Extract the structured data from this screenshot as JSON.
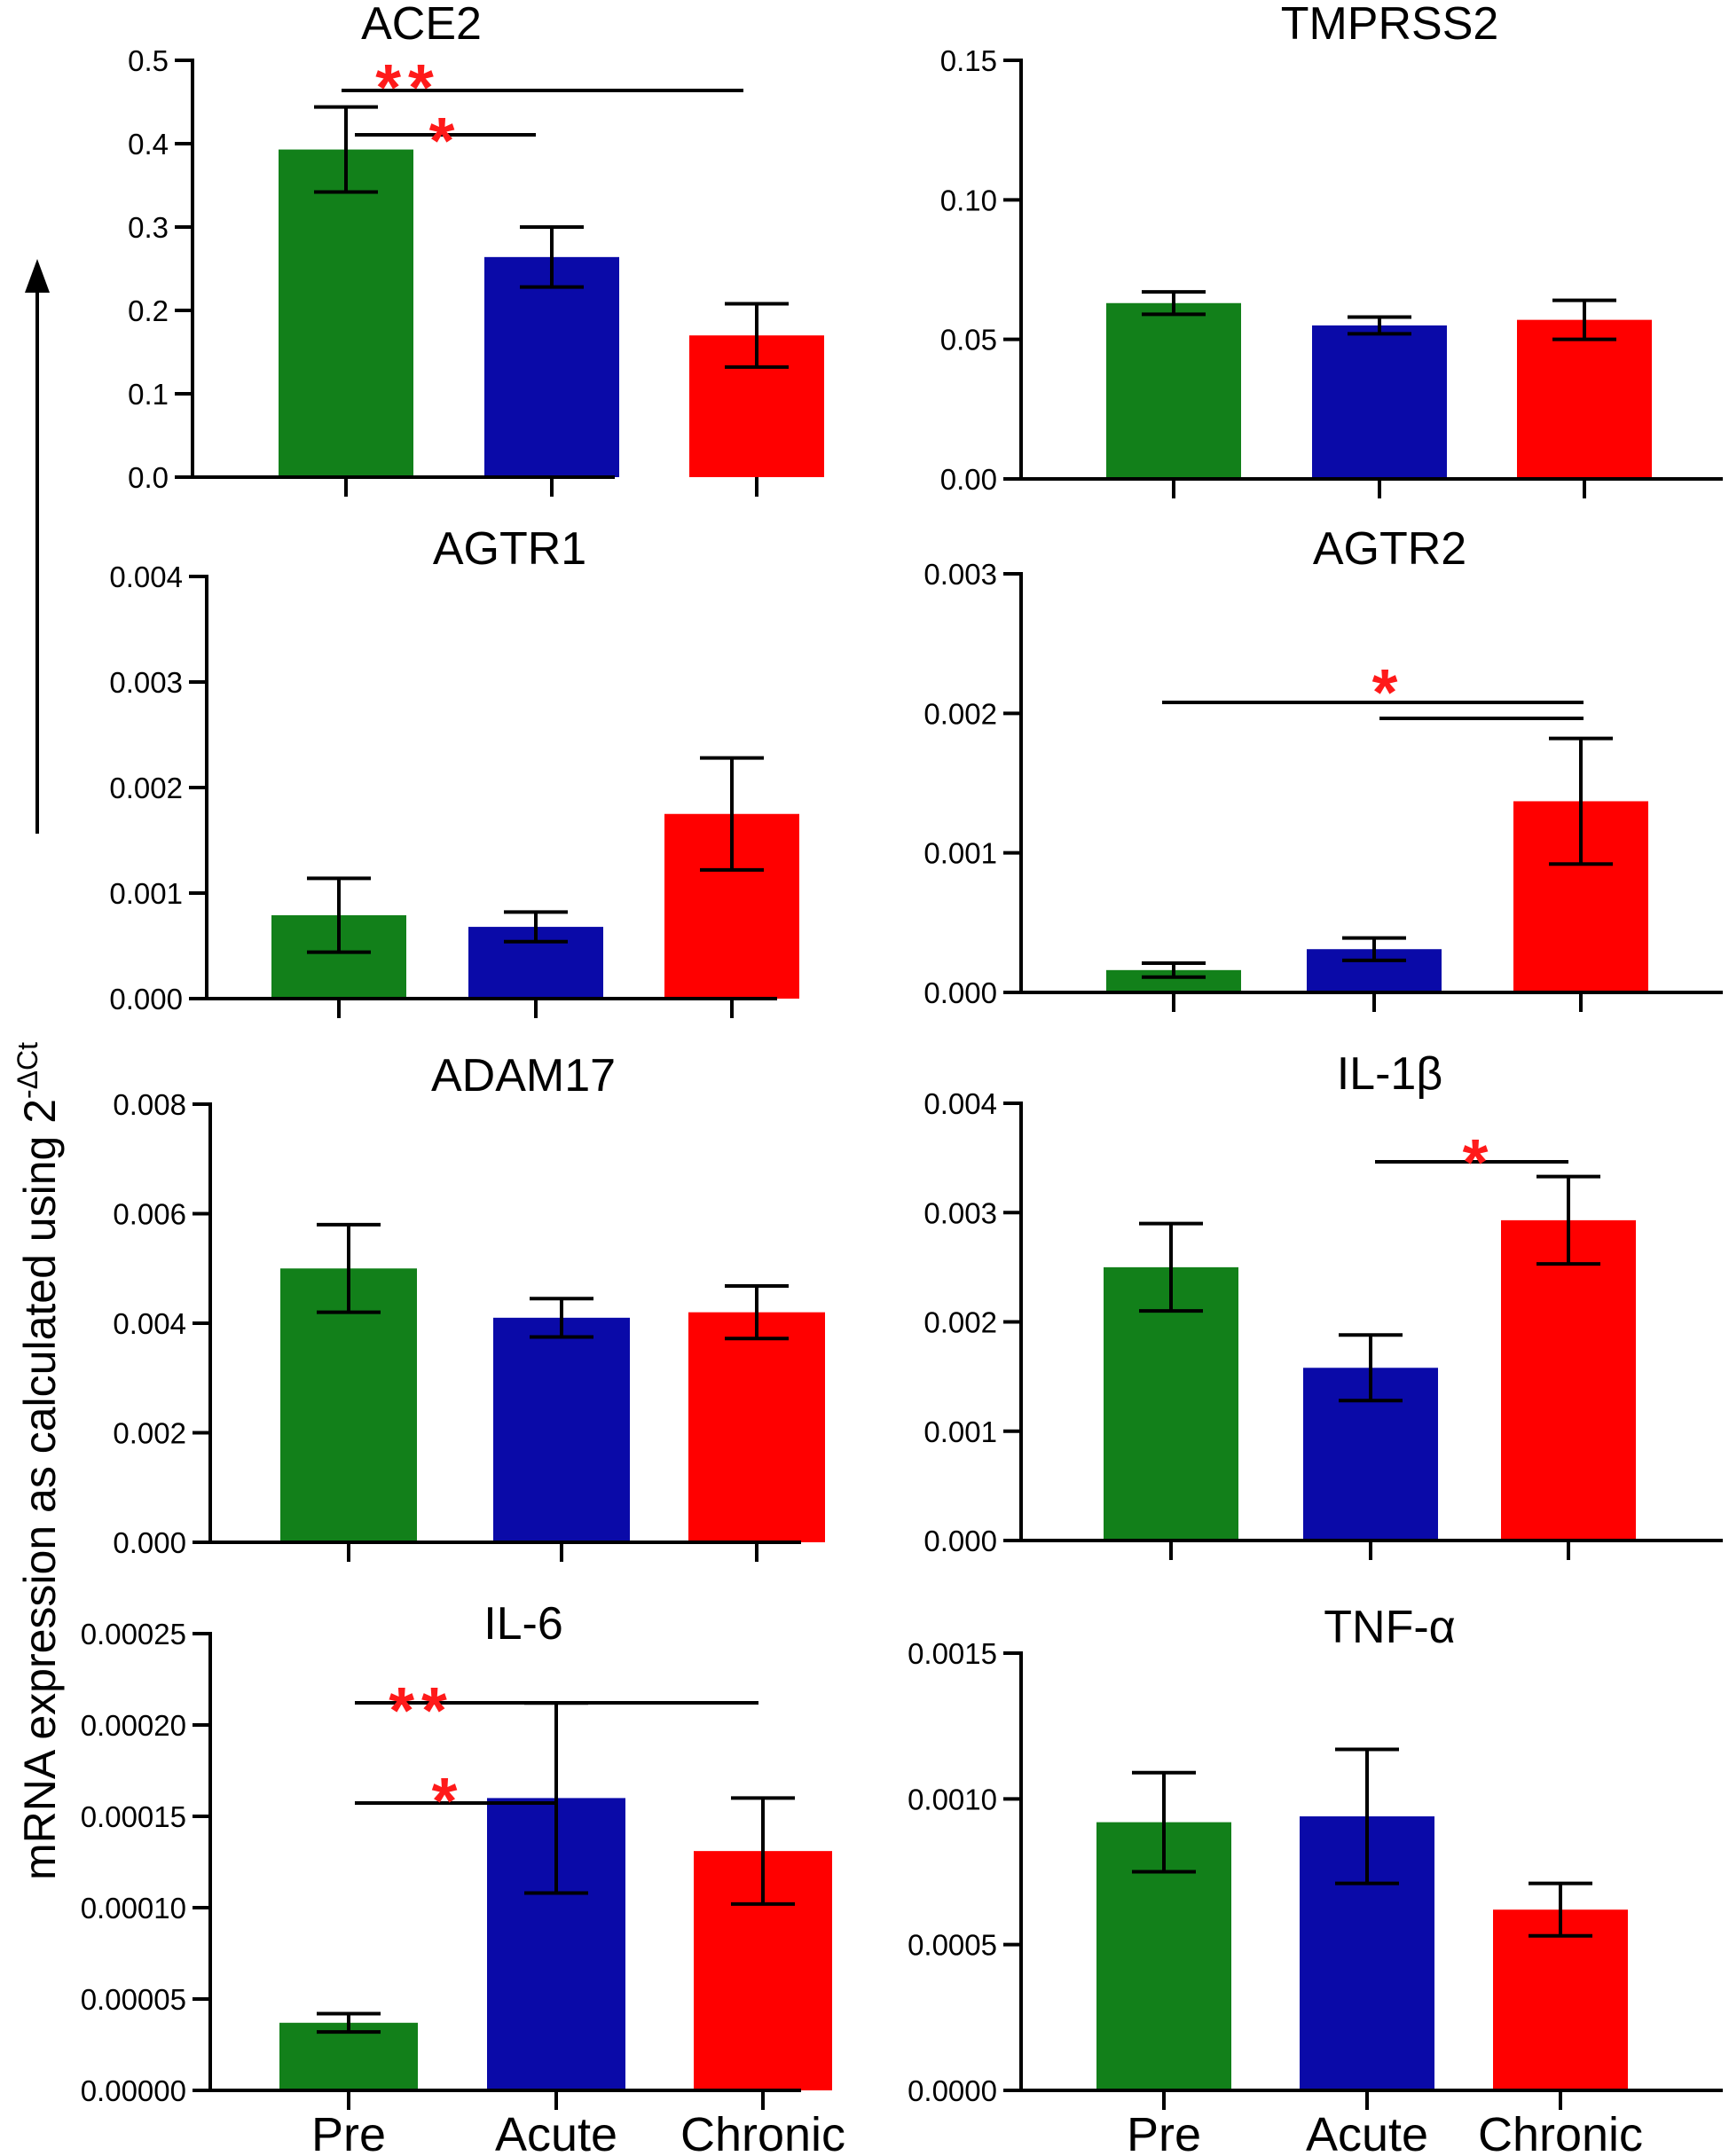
{
  "figure": {
    "ylabel": "mRNA expression as calculated using 2",
    "ylabel_sup": "-ΔCt",
    "categories": [
      "Pre",
      "Acute",
      "Chronic"
    ],
    "colors": {
      "Pre": "#12801a",
      "Acute": "#0a0aa8",
      "Chronic": "#ff0000",
      "significance": "#ff1a1a",
      "axis": "#000000"
    }
  },
  "chart_data": [
    {
      "type": "bar",
      "title": "ACE2",
      "categories": [
        "Pre",
        "Acute",
        "Chronic"
      ],
      "values": [
        0.393,
        0.264,
        0.17
      ],
      "errors": [
        0.051,
        0.036,
        0.038
      ],
      "ylim": [
        0,
        0.5
      ],
      "ticks": [
        "0.0",
        "0.1",
        "0.2",
        "0.3",
        "0.4",
        "0.5"
      ],
      "significance": [
        {
          "from": "Pre",
          "to": "Chronic",
          "stars": "**"
        },
        {
          "from": "Pre",
          "to": "Acute",
          "stars": "*"
        }
      ]
    },
    {
      "type": "bar",
      "title": "TMPRSS2",
      "categories": [
        "Pre",
        "Acute",
        "Chronic"
      ],
      "values": [
        0.063,
        0.055,
        0.057
      ],
      "errors": [
        0.004,
        0.003,
        0.007
      ],
      "ylim": [
        0,
        0.15
      ],
      "ticks": [
        "0.00",
        "0.05",
        "0.10",
        "0.15"
      ],
      "significance": []
    },
    {
      "type": "bar",
      "title": "AGTR1",
      "categories": [
        "Pre",
        "Acute",
        "Chronic"
      ],
      "values": [
        0.00079,
        0.00068,
        0.00175
      ],
      "errors": [
        0.00035,
        0.00014,
        0.00053
      ],
      "ylim": [
        0,
        0.004
      ],
      "ticks": [
        "0.000",
        "0.001",
        "0.002",
        "0.003",
        "0.004"
      ],
      "significance": []
    },
    {
      "type": "bar",
      "title": "AGTR2",
      "categories": [
        "Pre",
        "Acute",
        "Chronic"
      ],
      "values": [
        0.00016,
        0.00031,
        0.00137
      ],
      "errors": [
        5e-05,
        8e-05,
        0.00045
      ],
      "ylim": [
        0,
        0.003
      ],
      "ticks": [
        "0.000",
        "0.001",
        "0.002",
        "0.003"
      ],
      "significance": [
        {
          "from": "Pre",
          "to": "Chronic",
          "stars": "*"
        },
        {
          "from": "Acute",
          "to": "Chronic",
          "stars": ""
        }
      ]
    },
    {
      "type": "bar",
      "title": "ADAM17",
      "categories": [
        "Pre",
        "Acute",
        "Chronic"
      ],
      "values": [
        0.005,
        0.0041,
        0.0042
      ],
      "errors": [
        0.0008,
        0.00035,
        0.00048
      ],
      "ylim": [
        0,
        0.008
      ],
      "ticks": [
        "0.000",
        "0.002",
        "0.004",
        "0.006",
        "0.008"
      ],
      "significance": []
    },
    {
      "type": "bar",
      "title": "IL-1β",
      "categories": [
        "Pre",
        "Acute",
        "Chronic"
      ],
      "values": [
        0.0025,
        0.00158,
        0.00293
      ],
      "errors": [
        0.0004,
        0.0003,
        0.0004
      ],
      "ylim": [
        0,
        0.004
      ],
      "ticks": [
        "0.000",
        "0.001",
        "0.002",
        "0.003",
        "0.004"
      ],
      "significance": [
        {
          "from": "Acute",
          "to": "Chronic",
          "stars": "*"
        }
      ]
    },
    {
      "type": "bar",
      "title": "IL-6",
      "categories": [
        "Pre",
        "Acute",
        "Chronic"
      ],
      "values": [
        3.7e-05,
        0.00016,
        0.000131
      ],
      "errors": [
        5e-06,
        5.2e-05,
        2.9e-05
      ],
      "ylim": [
        0,
        0.00025
      ],
      "ticks": [
        "0.00000",
        "0.00005",
        "0.00010",
        "0.00015",
        "0.00020",
        "0.00025"
      ],
      "significance": [
        {
          "from": "Pre",
          "to": "Chronic",
          "stars": "**"
        },
        {
          "from": "Pre",
          "to": "Acute",
          "stars": "*"
        }
      ]
    },
    {
      "type": "bar",
      "title": "TNF-α",
      "categories": [
        "Pre",
        "Acute",
        "Chronic"
      ],
      "values": [
        0.00092,
        0.00094,
        0.00062
      ],
      "errors": [
        0.00017,
        0.00023,
        9e-05
      ],
      "ylim": [
        0,
        0.0015
      ],
      "ticks": [
        "0.0000",
        "0.0005",
        "0.0010",
        "0.0015"
      ],
      "significance": []
    }
  ]
}
